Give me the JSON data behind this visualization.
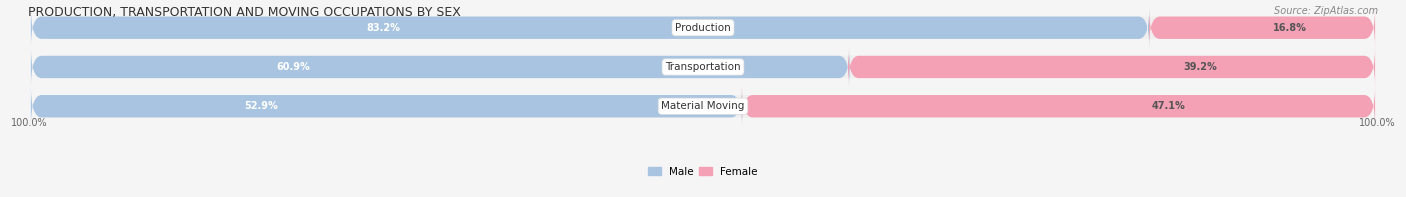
{
  "title": "PRODUCTION, TRANSPORTATION AND MOVING OCCUPATIONS BY SEX",
  "source": "Source: ZipAtlas.com",
  "categories": [
    "Production",
    "Transportation",
    "Material Moving"
  ],
  "male_pct": [
    83.2,
    60.9,
    52.9
  ],
  "female_pct": [
    16.8,
    39.2,
    47.1
  ],
  "male_color": "#a8c4e0",
  "male_color_dark": "#6aaed6",
  "female_color": "#f4a0b5",
  "female_color_dark": "#f06090",
  "bar_bg_color": "#efefef",
  "bg_color": "#f5f5f5",
  "label_bg": "#ffffff",
  "axis_label_left": "100.0%",
  "axis_label_right": "100.0%",
  "legend_male": "Male",
  "legend_female": "Female"
}
